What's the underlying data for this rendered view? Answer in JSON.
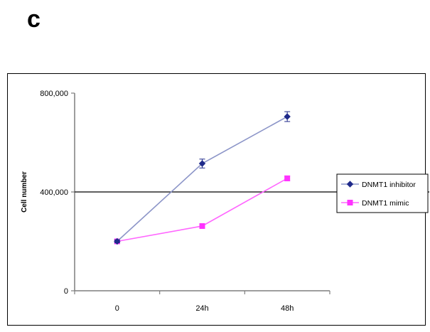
{
  "panel_label": "c",
  "chart_data": {
    "type": "line",
    "title": "",
    "xlabel": "",
    "ylabel": "Cell number",
    "categories": [
      "0",
      "24h",
      "48h"
    ],
    "ylim": [
      0,
      800000
    ],
    "yticks": [
      0,
      400000,
      800000
    ],
    "ytick_labels": [
      "0",
      "400,000",
      "800,000"
    ],
    "grid": "horizontal-major",
    "legend_position": "right",
    "series": [
      {
        "name": "DNMT1 inhibitor",
        "color": "#1f2a8a",
        "line_color": "#8c95c8",
        "marker": "diamond",
        "values": [
          200000,
          515000,
          705000
        ],
        "errors": [
          6000,
          18000,
          20000
        ]
      },
      {
        "name": "DNMT1 mimic",
        "color": "#ff33ff",
        "line_color": "#ff66ff",
        "marker": "square",
        "values": [
          200000,
          262000,
          455000
        ],
        "errors": [
          6000,
          8000,
          10000
        ]
      }
    ]
  }
}
